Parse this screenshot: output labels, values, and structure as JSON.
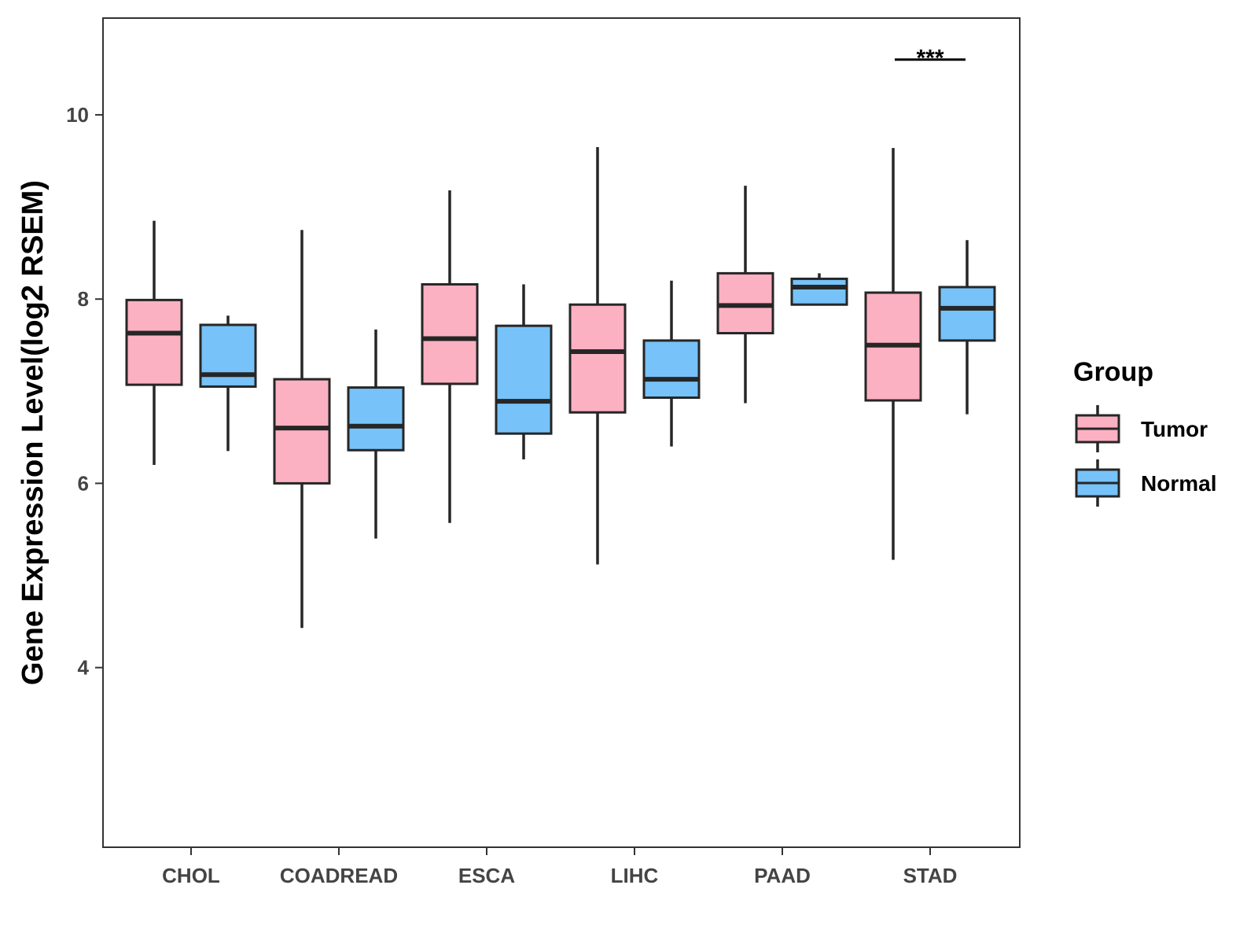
{
  "chart_data": {
    "type": "boxplot",
    "title": "",
    "xlabel": "",
    "ylabel": "Gene Expression Level(log2 RSEM)",
    "ylim": [
      2.05,
      11.05
    ],
    "yticks": [
      4,
      6,
      8,
      10
    ],
    "ytick_labels": [
      "4",
      "6",
      "8",
      "10"
    ],
    "grid": false,
    "categories": [
      "CHOL",
      "COADREAD",
      "ESCA",
      "LIHC",
      "PAAD",
      "STAD"
    ],
    "legend": {
      "title": "Group",
      "position": "right",
      "entries": [
        {
          "name": "Tumor",
          "color": "#FBB1C2"
        },
        {
          "name": "Normal",
          "color": "#77C2F8"
        }
      ]
    },
    "series": [
      {
        "name": "Tumor",
        "color": "#FBB1C2",
        "boxes": [
          {
            "category": "CHOL",
            "whisker_low": 6.2,
            "q1": 7.07,
            "median": 7.63,
            "q3": 7.99,
            "whisker_high": 8.85
          },
          {
            "category": "COADREAD",
            "whisker_low": 4.43,
            "q1": 6.0,
            "median": 6.6,
            "q3": 7.13,
            "whisker_high": 8.75
          },
          {
            "category": "ESCA",
            "whisker_low": 5.57,
            "q1": 7.08,
            "median": 7.57,
            "q3": 8.16,
            "whisker_high": 9.18
          },
          {
            "category": "LIHC",
            "whisker_low": 5.12,
            "q1": 6.77,
            "median": 7.43,
            "q3": 7.94,
            "whisker_high": 9.65
          },
          {
            "category": "PAAD",
            "whisker_low": 6.87,
            "q1": 7.63,
            "median": 7.93,
            "q3": 8.28,
            "whisker_high": 9.23
          },
          {
            "category": "STAD",
            "whisker_low": 5.17,
            "q1": 6.9,
            "median": 7.5,
            "q3": 8.07,
            "whisker_high": 9.64
          }
        ]
      },
      {
        "name": "Normal",
        "color": "#77C2F8",
        "boxes": [
          {
            "category": "CHOL",
            "whisker_low": 6.35,
            "q1": 7.05,
            "median": 7.18,
            "q3": 7.72,
            "whisker_high": 7.82
          },
          {
            "category": "COADREAD",
            "whisker_low": 5.4,
            "q1": 6.36,
            "median": 6.62,
            "q3": 7.04,
            "whisker_high": 7.67
          },
          {
            "category": "ESCA",
            "whisker_low": 6.26,
            "q1": 6.54,
            "median": 6.89,
            "q3": 7.71,
            "whisker_high": 8.16
          },
          {
            "category": "LIHC",
            "whisker_low": 6.4,
            "q1": 6.93,
            "median": 7.13,
            "q3": 7.55,
            "whisker_high": 8.2
          },
          {
            "category": "PAAD",
            "whisker_low": 7.94,
            "q1": 7.94,
            "median": 8.13,
            "q3": 8.22,
            "whisker_high": 8.28
          },
          {
            "category": "STAD",
            "whisker_low": 6.75,
            "q1": 7.55,
            "median": 7.9,
            "q3": 8.13,
            "whisker_high": 8.64
          }
        ]
      }
    ],
    "annotations": [
      {
        "category": "STAD",
        "text": "***",
        "y": 10.6
      }
    ]
  }
}
